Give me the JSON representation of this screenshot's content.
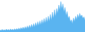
{
  "chart_data": {
    "type": "area",
    "values": [
      18,
      12,
      22,
      14,
      20,
      13,
      25,
      15,
      22,
      14,
      26,
      16,
      24,
      15,
      28,
      17,
      30,
      18,
      34,
      20,
      38,
      22,
      42,
      24,
      46,
      27,
      52,
      30,
      58,
      34,
      65,
      38,
      72,
      43,
      80,
      48,
      88,
      54,
      95,
      60,
      105,
      68,
      115,
      75,
      125,
      82,
      135,
      90,
      150,
      100,
      170,
      115,
      190,
      130,
      200,
      160,
      230,
      185,
      260,
      195,
      240,
      170,
      210,
      140,
      175,
      115,
      135,
      88,
      105,
      72,
      120,
      90,
      135,
      105,
      150,
      120,
      160,
      130,
      145,
      115,
      130,
      100
    ],
    "color": "#5ab4f0",
    "xlim": [
      0,
      81
    ],
    "ylim": [
      0,
      273
    ],
    "tick_labels": false,
    "grid": false
  }
}
